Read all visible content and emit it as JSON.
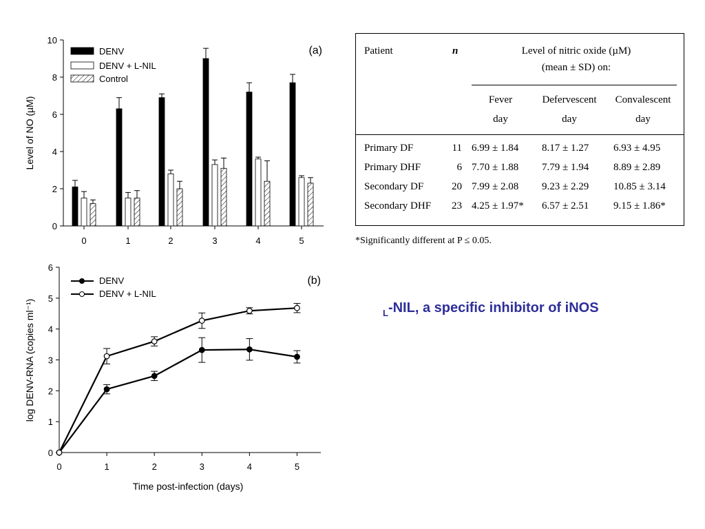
{
  "chart_data": [
    {
      "type": "bar",
      "panel_label": "(a)",
      "ylabel": "Level of NO (µM)",
      "ylim": [
        0,
        10
      ],
      "yticks": [
        0,
        2,
        4,
        6,
        8,
        10
      ],
      "categories": [
        "0",
        "1",
        "2",
        "3",
        "4",
        "5"
      ],
      "series": [
        {
          "name": "DENV",
          "values": [
            2.1,
            6.3,
            6.9,
            9.0,
            7.2,
            7.7
          ],
          "errors": [
            0.35,
            0.6,
            0.2,
            0.55,
            0.5,
            0.45
          ],
          "style": "solid",
          "color": "#000000"
        },
        {
          "name": "DENV + L-NIL",
          "values": [
            1.5,
            1.5,
            2.8,
            3.3,
            3.6,
            2.6
          ],
          "errors": [
            0.35,
            0.3,
            0.2,
            0.25,
            0.1,
            0.1
          ],
          "style": "open",
          "color": "#ffffff"
        },
        {
          "name": "Control",
          "values": [
            1.2,
            1.5,
            2.0,
            3.1,
            2.4,
            2.3
          ],
          "errors": [
            0.2,
            0.4,
            0.4,
            0.55,
            1.1,
            0.3
          ],
          "style": "hatched",
          "color": "#ffffff"
        }
      ]
    },
    {
      "type": "line",
      "panel_label": "(b)",
      "xlabel": "Time post-infection (days)",
      "ylabel": "log DENV-RNA (copies ml⁻¹)",
      "xlim": [
        0,
        5.5
      ],
      "ylim": [
        0,
        6
      ],
      "xticks": [
        0,
        1,
        2,
        3,
        4,
        5
      ],
      "yticks": [
        0,
        1,
        2,
        3,
        4,
        5,
        6
      ],
      "x": [
        0,
        1,
        2,
        3,
        4,
        5
      ],
      "series": [
        {
          "name": "DENV",
          "values": [
            0,
            2.05,
            2.48,
            3.32,
            3.34,
            3.1
          ],
          "errors": [
            0,
            0.15,
            0.15,
            0.4,
            0.35,
            0.2
          ],
          "marker": "filled"
        },
        {
          "name": "DENV + L-NIL",
          "values": [
            0,
            3.12,
            3.6,
            4.27,
            4.59,
            4.68
          ],
          "errors": [
            0,
            0.25,
            0.15,
            0.25,
            0.1,
            0.15
          ],
          "marker": "open"
        }
      ]
    }
  ],
  "table": {
    "headers": {
      "patient": "Patient",
      "n": "n",
      "level_line1": "Level of nitric oxide (µM)",
      "level_line2": "(mean ± SD) on:",
      "fever_1": "Fever",
      "fever_2": "day",
      "deferv_1": "Defervescent",
      "deferv_2": "day",
      "conval_1": "Convalescent",
      "conval_2": "day"
    },
    "rows": [
      {
        "patient": "Primary DF",
        "n": "11",
        "fever": "6.99 ± 1.84",
        "deferv": "8.17 ± 1.27",
        "conval": "6.93 ± 4.95"
      },
      {
        "patient": "Primary DHF",
        "n": "6",
        "fever": "7.70 ± 1.88",
        "deferv": "7.79 ± 1.94",
        "conval": "8.89 ± 2.89"
      },
      {
        "patient": "Secondary DF",
        "n": "20",
        "fever": "7.99 ± 2.08",
        "deferv": "9.23 ± 2.29",
        "conval": "10.85 ± 3.14"
      },
      {
        "patient": "Secondary DHF",
        "n": "23",
        "fever": "4.25 ± 1.97*",
        "deferv": "6.57 ± 2.51",
        "conval": "9.15 ± 1.86*"
      }
    ],
    "footnote": "*Significantly different at P ≤ 0.05."
  },
  "caption": {
    "prefix": "L",
    "text": "-NIL, a specific inhibitor of iNOS",
    "color": "#2e2e9a"
  }
}
